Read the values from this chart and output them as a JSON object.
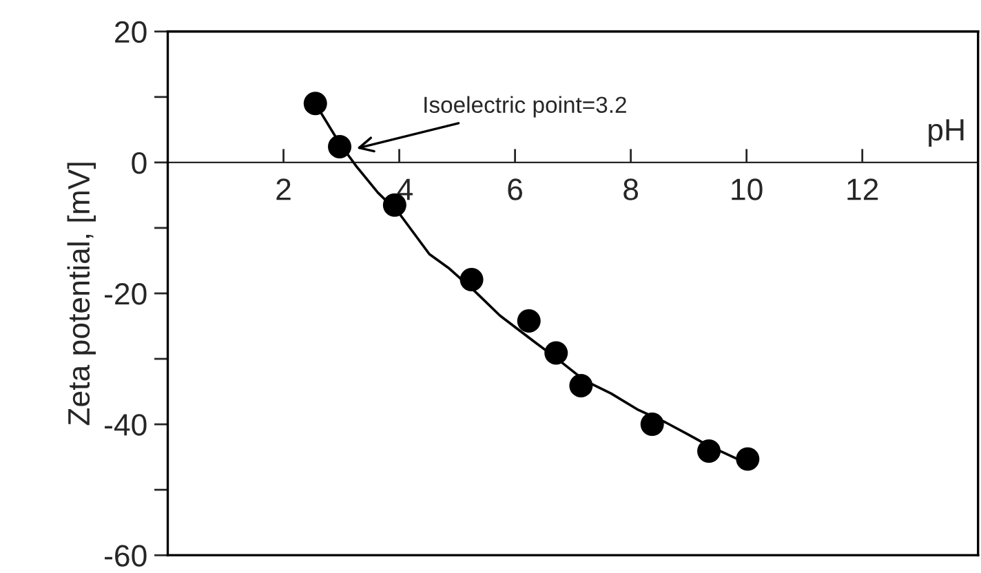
{
  "chart_data": {
    "type": "scatter",
    "xlabel": "pH",
    "ylabel": "Zeta potential, [mV]",
    "xlim": [
      0,
      14
    ],
    "xticks": [
      2,
      4,
      6,
      8,
      10,
      12
    ],
    "ylim": [
      -60,
      20
    ],
    "yticks": [
      -60,
      {
        "value": -50,
        "label": null
      },
      -40,
      {
        "value": -30,
        "label": null
      },
      -20,
      {
        "value": -10,
        "label": null
      },
      0,
      {
        "value": 10,
        "label": null
      },
      20
    ],
    "grid": false,
    "legend": false,
    "marker": "circle",
    "series": [
      {
        "type": "scatter",
        "color": "#000000",
        "x": [
          2.55,
          2.97,
          3.92,
          5.25,
          6.24,
          6.71,
          7.14,
          8.37,
          9.35,
          10.02
        ],
        "values": [
          9,
          2.4,
          -6.5,
          -17.9,
          -24.2,
          -29.1,
          -34.1,
          -40,
          -44.1,
          -45.3
        ]
      },
      {
        "type": "line",
        "color": "#000000",
        "marker": "none",
        "line_style": "solid",
        "x": [
          2.55,
          2.97,
          3.26,
          3.63,
          4.0,
          4.52,
          4.85,
          5.32,
          5.74,
          6.35,
          6.73,
          7.2,
          7.66,
          8.13,
          8.6,
          8.98,
          9.35,
          9.82
        ],
        "values": [
          9,
          2.9,
          -0.6,
          -4.6,
          -7.8,
          -14.0,
          -16.1,
          -19.8,
          -23.4,
          -27.5,
          -30,
          -33.3,
          -35.3,
          -37.8,
          -39.7,
          -41.5,
          -43.3,
          -45.2
        ]
      }
    ],
    "annotations": [
      {
        "text": "Isoelectric point=3.2",
        "x": 3.2,
        "y": 2
      }
    ]
  }
}
